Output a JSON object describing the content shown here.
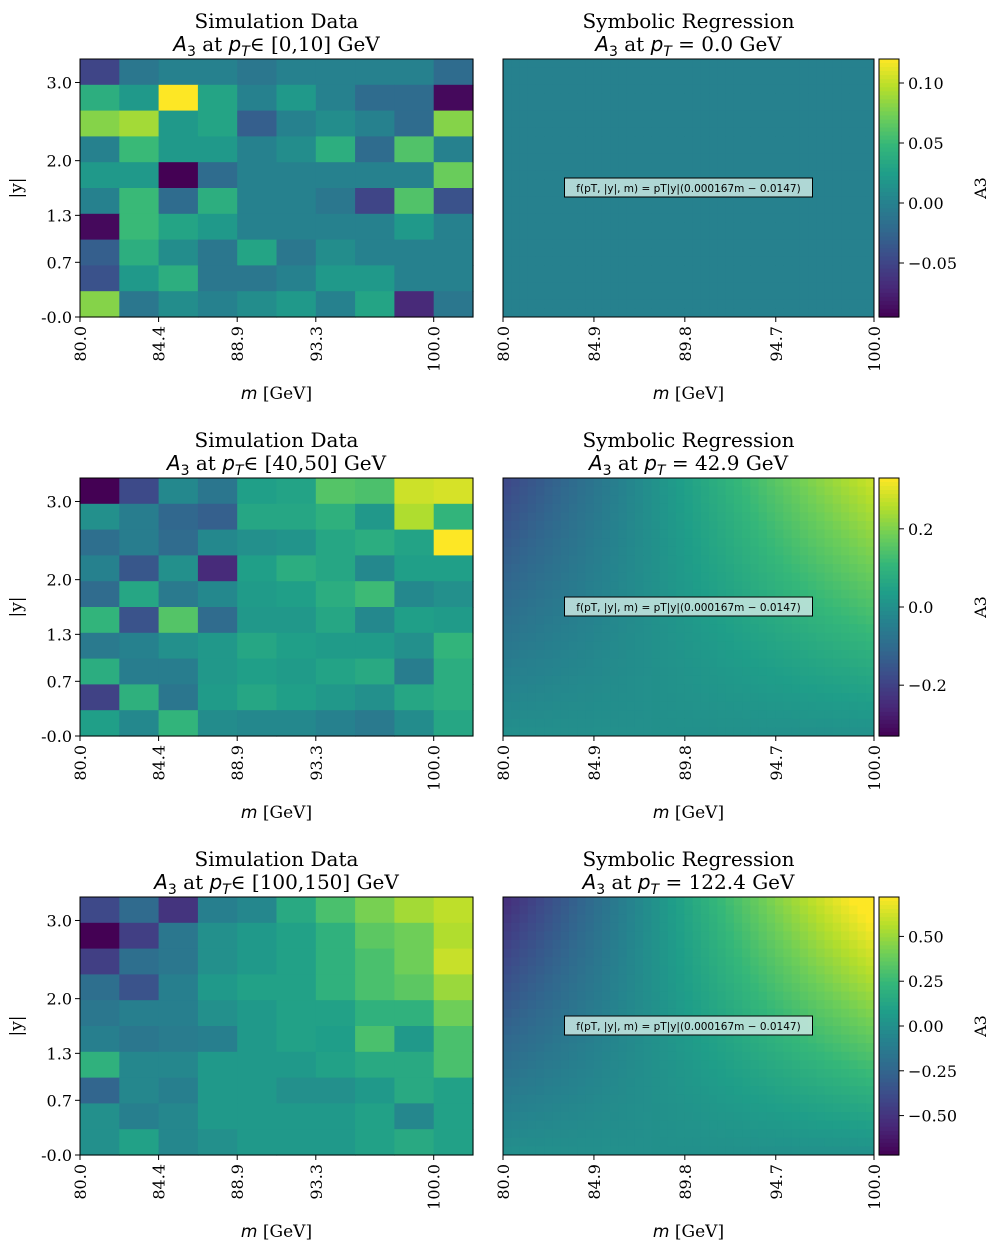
{
  "figure": {
    "colormap": "viridis",
    "colorbar_label": "A3"
  },
  "chart_data": [
    {
      "id": "sim-top",
      "type": "heatmap",
      "title_line1": "Simulation Data",
      "title_line2_sym": "A",
      "title_line2_sub": "3",
      "title_line2_mid": " at ",
      "title_line2_pt": "p",
      "title_line2_pt_sub": "T",
      "title_line2_rest": "∈  [0,10] GeV",
      "xlabel_var": "m",
      "xlabel_unit": " [GeV]",
      "ylabel": "|y|",
      "xticks": [
        "80.0",
        "84.4",
        "88.9",
        "93.3",
        "100.0"
      ],
      "yticks": [
        "-0.0",
        "0.7",
        "1.3",
        "2.0",
        "3.0"
      ],
      "x_bins": 10,
      "y_bins": 10,
      "vmin": -0.095,
      "vmax": 0.12,
      "values_top_to_bottom": [
        [
          -0.05,
          -0.01,
          0.0,
          0.0,
          -0.01,
          0.0,
          0.0,
          0.0,
          0.0,
          -0.02
        ],
        [
          0.04,
          0.02,
          0.12,
          0.03,
          0.0,
          0.02,
          0.0,
          -0.02,
          -0.02,
          -0.09
        ],
        [
          0.08,
          0.09,
          0.02,
          0.03,
          -0.03,
          0.0,
          0.01,
          0.0,
          -0.02,
          0.08
        ],
        [
          0.0,
          0.05,
          0.02,
          0.02,
          0.0,
          0.01,
          0.04,
          -0.02,
          0.06,
          0.0
        ],
        [
          0.02,
          0.02,
          -0.095,
          -0.02,
          0.0,
          0.0,
          0.0,
          0.0,
          0.0,
          0.07
        ],
        [
          0.0,
          0.05,
          -0.02,
          0.04,
          0.0,
          0.0,
          -0.01,
          -0.05,
          0.06,
          -0.04
        ],
        [
          -0.09,
          0.05,
          0.03,
          0.02,
          0.0,
          0.0,
          0.0,
          0.0,
          0.02,
          0.0
        ],
        [
          -0.03,
          0.04,
          0.01,
          -0.01,
          0.03,
          -0.01,
          0.01,
          0.0,
          0.0,
          0.0
        ],
        [
          -0.04,
          0.02,
          0.04,
          -0.01,
          -0.01,
          0.0,
          0.02,
          0.02,
          0.0,
          0.0
        ],
        [
          0.08,
          -0.01,
          0.01,
          0.0,
          0.01,
          0.02,
          0.0,
          0.03,
          -0.07,
          -0.01
        ]
      ]
    },
    {
      "id": "sr-top",
      "type": "heatmap",
      "title_line1": "Symbolic Regression",
      "title_line2_sym": "A",
      "title_line2_sub": "3",
      "title_line2_mid": " at ",
      "title_line2_pt": "p",
      "title_line2_pt_sub": "T",
      "title_line2_rest": " = 0.0 GeV",
      "xlabel_var": "m",
      "xlabel_unit": " [GeV]",
      "xticks": [
        "80.0",
        "84.9",
        "89.8",
        "94.7",
        "100.0"
      ],
      "pt": 0.0,
      "formula": "f(p_T, |y|, m) = p_T|y|(0.000167m − 0.0147)",
      "formula_display": "f(pT, |y|, m) = pT|y|(0.000167m − 0.0147)",
      "m_range": [
        80.0,
        100.0
      ],
      "y_range": [
        0.0,
        3.3
      ],
      "vmin": -0.095,
      "vmax": 0.12,
      "colorbar_ticks": [
        0.1,
        0.05,
        0.0,
        -0.05
      ],
      "colorbar_tick_labels": [
        "0.10",
        "0.05",
        "0.00",
        "−0.05"
      ]
    },
    {
      "id": "sim-mid",
      "type": "heatmap",
      "title_line1": "Simulation Data",
      "title_line2_sym": "A",
      "title_line2_sub": "3",
      "title_line2_mid": " at ",
      "title_line2_pt": "p",
      "title_line2_pt_sub": "T",
      "title_line2_rest": "∈  [40,50] GeV",
      "xlabel_var": "m",
      "xlabel_unit": " [GeV]",
      "ylabel": "|y|",
      "xticks": [
        "80.0",
        "84.4",
        "88.9",
        "93.3",
        "100.0"
      ],
      "yticks": [
        "-0.0",
        "0.7",
        "1.3",
        "2.0",
        "3.0"
      ],
      "x_bins": 10,
      "y_bins": 10,
      "vmin": -0.33,
      "vmax": 0.33,
      "values_top_to_bottom": [
        [
          -0.33,
          -0.18,
          -0.02,
          -0.07,
          0.04,
          0.05,
          0.15,
          0.14,
          0.28,
          0.29
        ],
        [
          0.0,
          -0.05,
          -0.11,
          -0.13,
          0.06,
          0.06,
          0.09,
          0.02,
          0.25,
          0.1
        ],
        [
          -0.09,
          -0.05,
          -0.1,
          -0.02,
          0.0,
          0.01,
          0.06,
          0.08,
          0.05,
          0.33
        ],
        [
          -0.04,
          -0.15,
          0.0,
          -0.25,
          0.04,
          0.08,
          0.06,
          -0.02,
          0.04,
          0.04
        ],
        [
          -0.1,
          0.06,
          -0.06,
          -0.02,
          0.03,
          0.04,
          0.08,
          0.12,
          -0.02,
          0.0
        ],
        [
          0.1,
          -0.16,
          0.15,
          -0.1,
          0.02,
          0.02,
          0.06,
          -0.02,
          0.04,
          0.03
        ],
        [
          -0.06,
          -0.04,
          0.0,
          0.02,
          0.06,
          0.04,
          0.03,
          0.03,
          0.0,
          0.1
        ],
        [
          0.08,
          -0.05,
          -0.05,
          0.02,
          0.04,
          0.03,
          0.05,
          0.07,
          -0.05,
          0.08
        ],
        [
          -0.2,
          0.09,
          -0.07,
          0.03,
          0.06,
          0.04,
          0.02,
          0.0,
          0.06,
          0.08
        ],
        [
          0.04,
          -0.02,
          0.1,
          -0.01,
          -0.02,
          -0.02,
          -0.04,
          -0.06,
          -0.01,
          0.06
        ]
      ]
    },
    {
      "id": "sr-mid",
      "type": "heatmap",
      "title_line1": "Symbolic Regression",
      "title_line2_sym": "A",
      "title_line2_sub": "3",
      "title_line2_mid": " at ",
      "title_line2_pt": "p",
      "title_line2_pt_sub": "T",
      "title_line2_rest": " = 42.9 GeV",
      "xlabel_var": "m",
      "xlabel_unit": " [GeV]",
      "xticks": [
        "80.0",
        "84.9",
        "89.8",
        "94.7",
        "100.0"
      ],
      "pt": 42.9,
      "formula": "f(p_T, |y|, m) = p_T|y|(0.000167m − 0.0147)",
      "formula_display": "f(pT, |y|, m) = pT|y|(0.000167m − 0.0147)",
      "m_range": [
        80.0,
        100.0
      ],
      "y_range": [
        0.0,
        3.3
      ],
      "vmin": -0.33,
      "vmax": 0.33,
      "colorbar_ticks": [
        0.2,
        0.0,
        -0.2
      ],
      "colorbar_tick_labels": [
        "0.2",
        "0.0",
        "−0.2"
      ]
    },
    {
      "id": "sim-bot",
      "type": "heatmap",
      "title_line1": "Simulation Data",
      "title_line2_sym": "A",
      "title_line2_sub": "3",
      "title_line2_mid": " at ",
      "title_line2_pt": "p",
      "title_line2_pt_sub": "T",
      "title_line2_rest": "∈  [100,150] GeV",
      "xlabel_var": "m",
      "xlabel_unit": " [GeV]",
      "ylabel": "|y|",
      "xticks": [
        "80.0",
        "84.4",
        "88.9",
        "93.3",
        "100.0"
      ],
      "yticks": [
        "-0.0",
        "0.7",
        "1.3",
        "2.0",
        "3.0"
      ],
      "x_bins": 10,
      "y_bins": 10,
      "vmin": -0.72,
      "vmax": 0.72,
      "values_top_to_bottom": [
        [
          -0.4,
          -0.22,
          -0.5,
          -0.1,
          -0.05,
          0.15,
          0.3,
          0.42,
          0.52,
          0.58
        ],
        [
          -0.72,
          -0.45,
          -0.15,
          0.0,
          0.05,
          0.1,
          0.2,
          0.35,
          0.4,
          0.55
        ],
        [
          -0.45,
          -0.2,
          -0.15,
          0.0,
          0.05,
          0.1,
          0.2,
          0.3,
          0.4,
          0.6
        ],
        [
          -0.2,
          -0.35,
          -0.1,
          0.05,
          0.1,
          0.1,
          0.2,
          0.3,
          0.35,
          0.5
        ],
        [
          -0.15,
          -0.1,
          -0.1,
          0.0,
          0.05,
          0.1,
          0.1,
          0.2,
          0.2,
          0.4
        ],
        [
          -0.1,
          -0.15,
          -0.12,
          -0.1,
          0.05,
          0.1,
          0.08,
          0.3,
          0.05,
          0.3
        ],
        [
          0.2,
          -0.05,
          -0.05,
          0.05,
          0.05,
          0.05,
          0.1,
          0.15,
          0.15,
          0.3
        ],
        [
          -0.25,
          -0.05,
          -0.1,
          0.05,
          0.05,
          0.0,
          0.0,
          0.05,
          0.15,
          0.1
        ],
        [
          0.0,
          -0.1,
          -0.05,
          0.05,
          0.05,
          0.05,
          0.05,
          0.1,
          -0.05,
          0.1
        ],
        [
          0.0,
          0.1,
          -0.05,
          0.0,
          0.05,
          0.05,
          0.05,
          0.1,
          0.15,
          0.1
        ]
      ]
    },
    {
      "id": "sr-bot",
      "type": "heatmap",
      "title_line1": "Symbolic Regression",
      "title_line2_sym": "A",
      "title_line2_sub": "3",
      "title_line2_mid": " at ",
      "title_line2_pt": "p",
      "title_line2_pt_sub": "T",
      "title_line2_rest": " = 122.4 GeV",
      "xlabel_var": "m",
      "xlabel_unit": " [GeV]",
      "xticks": [
        "80.0",
        "84.9",
        "89.8",
        "94.7",
        "100.0"
      ],
      "pt": 122.4,
      "formula": "f(p_T, |y|, m) = p_T|y|(0.000167m − 0.0147)",
      "formula_display": "f(pT, |y|, m) = pT|y|(0.000167m − 0.0147)",
      "m_range": [
        80.0,
        100.0
      ],
      "y_range": [
        0.0,
        3.3
      ],
      "vmin": -0.72,
      "vmax": 0.72,
      "colorbar_ticks": [
        0.5,
        0.25,
        0.0,
        -0.25,
        -0.5
      ],
      "colorbar_tick_labels": [
        "0.50",
        "0.25",
        "0.00",
        "−0.25",
        "−0.50"
      ]
    }
  ]
}
